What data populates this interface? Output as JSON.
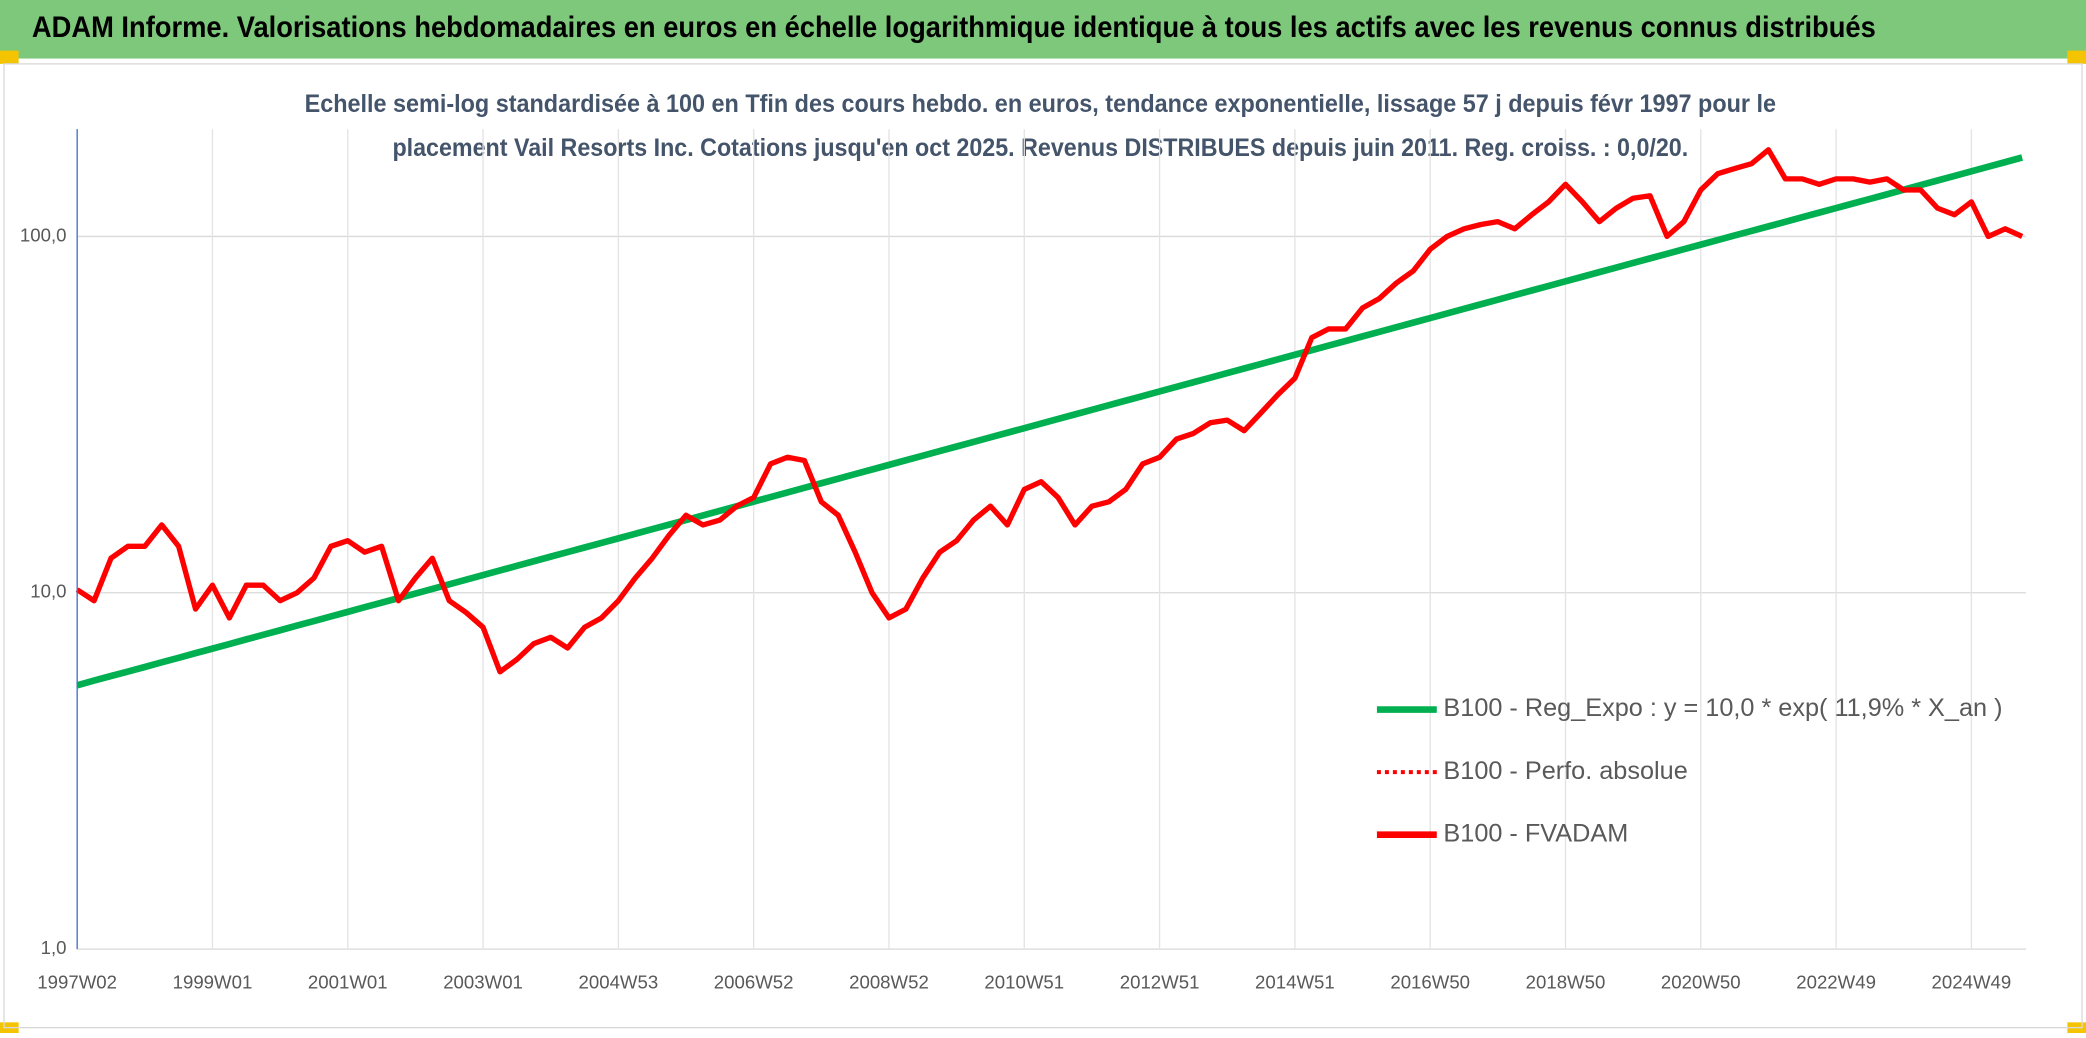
{
  "chart_data": {
    "type": "line",
    "title": "ADAM Informe. Valorisations hebdomadaires en euros en échelle logarithmique identique à tous les actifs avec les revenus connus distribués",
    "subtitle": [
      "Echelle semi-log standardisée à 100 en Tfin des cours hebdo. en euros, tendance exponentielle, lissage 57 j depuis févr 1997 pour le",
      "placement Vail Resorts Inc. Cotations jusqu'en oct 2025. Revenus DISTRIBUES depuis juin 2011. Reg. croiss. : 0,0/20."
    ],
    "log_scale": true,
    "grid": true,
    "legend": "right",
    "ylim": [
      1,
      200
    ],
    "yticks": [
      {
        "value": 1,
        "label": "1,0"
      },
      {
        "value": 10,
        "label": "10,0"
      },
      {
        "value": 100,
        "label": "100,0"
      }
    ],
    "categories": [
      "1997W02",
      null,
      null,
      null,
      null,
      null,
      null,
      null,
      "1999W01",
      null,
      null,
      null,
      null,
      null,
      null,
      null,
      "2001W01",
      null,
      null,
      null,
      null,
      null,
      null,
      null,
      "2003W01",
      null,
      null,
      null,
      null,
      null,
      null,
      null,
      "2004W53",
      null,
      null,
      null,
      null,
      null,
      null,
      null,
      "2006W52",
      null,
      null,
      null,
      null,
      null,
      null,
      null,
      "2008W52",
      null,
      null,
      null,
      null,
      null,
      null,
      null,
      "2010W51",
      null,
      null,
      null,
      null,
      null,
      null,
      null,
      "2012W51",
      null,
      null,
      null,
      null,
      null,
      null,
      null,
      "2014W51",
      null,
      null,
      null,
      null,
      null,
      null,
      null,
      "2016W50",
      null,
      null,
      null,
      null,
      null,
      null,
      null,
      "2018W50",
      null,
      null,
      null,
      null,
      null,
      null,
      null,
      "2020W50",
      null,
      null,
      null,
      null,
      null,
      null,
      null,
      "2022W49",
      null,
      null,
      null,
      null,
      null,
      null,
      null,
      "2024W49",
      null,
      null,
      null
    ],
    "series": [
      {
        "name": "B100 - Reg_Expo : y = 10,0 * exp( 11,9% *  X_an )",
        "color": "#00b050",
        "style": "solid",
        "values": [
          5.5,
          5.67,
          5.84,
          6.01,
          6.19,
          6.38,
          6.57,
          6.77,
          6.97,
          7.18,
          7.4,
          7.62,
          7.85,
          8.09,
          8.33,
          8.58,
          8.84,
          9.11,
          9.38,
          9.66,
          9.95,
          10.25,
          10.56,
          10.88,
          11.21,
          11.55,
          11.9,
          12.26,
          12.63,
          13.01,
          13.4,
          13.8,
          14.21,
          14.64,
          15.08,
          15.53,
          16,
          16.48,
          16.98,
          17.49,
          18.02,
          18.56,
          19.12,
          19.7,
          20.29,
          20.9,
          21.53,
          22.18,
          22.85,
          23.54,
          24.25,
          24.98,
          25.73,
          26.5,
          27.3,
          28.12,
          28.97,
          29.84,
          30.74,
          31.67,
          32.62,
          33.6,
          34.61,
          35.65,
          36.72,
          37.83,
          38.97,
          40.14,
          41.35,
          42.59,
          43.87,
          45.19,
          46.55,
          47.95,
          49.39,
          50.88,
          52.41,
          53.99,
          55.62,
          57.29,
          59.01,
          60.79,
          62.62,
          64.5,
          66.44,
          68.44,
          70.5,
          72.62,
          74.81,
          77.06,
          79.38,
          81.77,
          84.23,
          86.76,
          89.37,
          92.06,
          94.83,
          97.68,
          100.6,
          103.6,
          106.7,
          109.9,
          113.2,
          116.6,
          120.1,
          123.7,
          127.4,
          131.2,
          135.2,
          139.3,
          143.5,
          147.8,
          152.3,
          156.9,
          161.6,
          166.5
        ]
      },
      {
        "name": "B100 - Perfo. absolue",
        "color": "#ff0000",
        "style": "dotted",
        "values": [
          10.2,
          9.5,
          12.5,
          13.5,
          13.5,
          15.5,
          13.5,
          9,
          10.5,
          8.5,
          10.5,
          10.5,
          9.5,
          10,
          11,
          13.5,
          14,
          13,
          13.5,
          9.5,
          11,
          12.5,
          9.5,
          8.8,
          8,
          6,
          6.5,
          7.2,
          7.5,
          7,
          8,
          8.5,
          9.5,
          11,
          12.5,
          14.5,
          16.5,
          15.5,
          16,
          17.5,
          18.5,
          23,
          24,
          23.5,
          18,
          16.5,
          13,
          10,
          8.5,
          9,
          11,
          13,
          14,
          16,
          17.5,
          15.5,
          19.5,
          20.5,
          18.5,
          15.5,
          17.5,
          18,
          19.5,
          23,
          24,
          27,
          28,
          30,
          30.5,
          28.5,
          32,
          36,
          40,
          52,
          55,
          55,
          63,
          67,
          74,
          80,
          92,
          100,
          105,
          108,
          110,
          105,
          115,
          125,
          140,
          125,
          110,
          120,
          128,
          130,
          100,
          110,
          135,
          150,
          155,
          160,
          175,
          145,
          145,
          140,
          145,
          145,
          142,
          145,
          135,
          135,
          120,
          115,
          125,
          100,
          105,
          100
        ]
      },
      {
        "name": "B100 - FVADAM",
        "color": "#ff0000",
        "style": "solid",
        "values": [
          10.2,
          9.5,
          12.5,
          13.5,
          13.5,
          15.5,
          13.5,
          9,
          10.5,
          8.5,
          10.5,
          10.5,
          9.5,
          10,
          11,
          13.5,
          14,
          13,
          13.5,
          9.5,
          11,
          12.5,
          9.5,
          8.8,
          8,
          6,
          6.5,
          7.2,
          7.5,
          7,
          8,
          8.5,
          9.5,
          11,
          12.5,
          14.5,
          16.5,
          15.5,
          16,
          17.5,
          18.5,
          23,
          24,
          23.5,
          18,
          16.5,
          13,
          10,
          8.5,
          9,
          11,
          13,
          14,
          16,
          17.5,
          15.5,
          19.5,
          20.5,
          18.5,
          15.5,
          17.5,
          18,
          19.5,
          23,
          24,
          27,
          28,
          30,
          30.5,
          28.5,
          32,
          36,
          40,
          52,
          55,
          55,
          63,
          67,
          74,
          80,
          92,
          100,
          105,
          108,
          110,
          105,
          115,
          125,
          140,
          125,
          110,
          120,
          128,
          130,
          100,
          110,
          135,
          150,
          155,
          160,
          175,
          145,
          145,
          140,
          145,
          145,
          142,
          145,
          135,
          135,
          120,
          115,
          125,
          100,
          105,
          100
        ]
      }
    ]
  }
}
